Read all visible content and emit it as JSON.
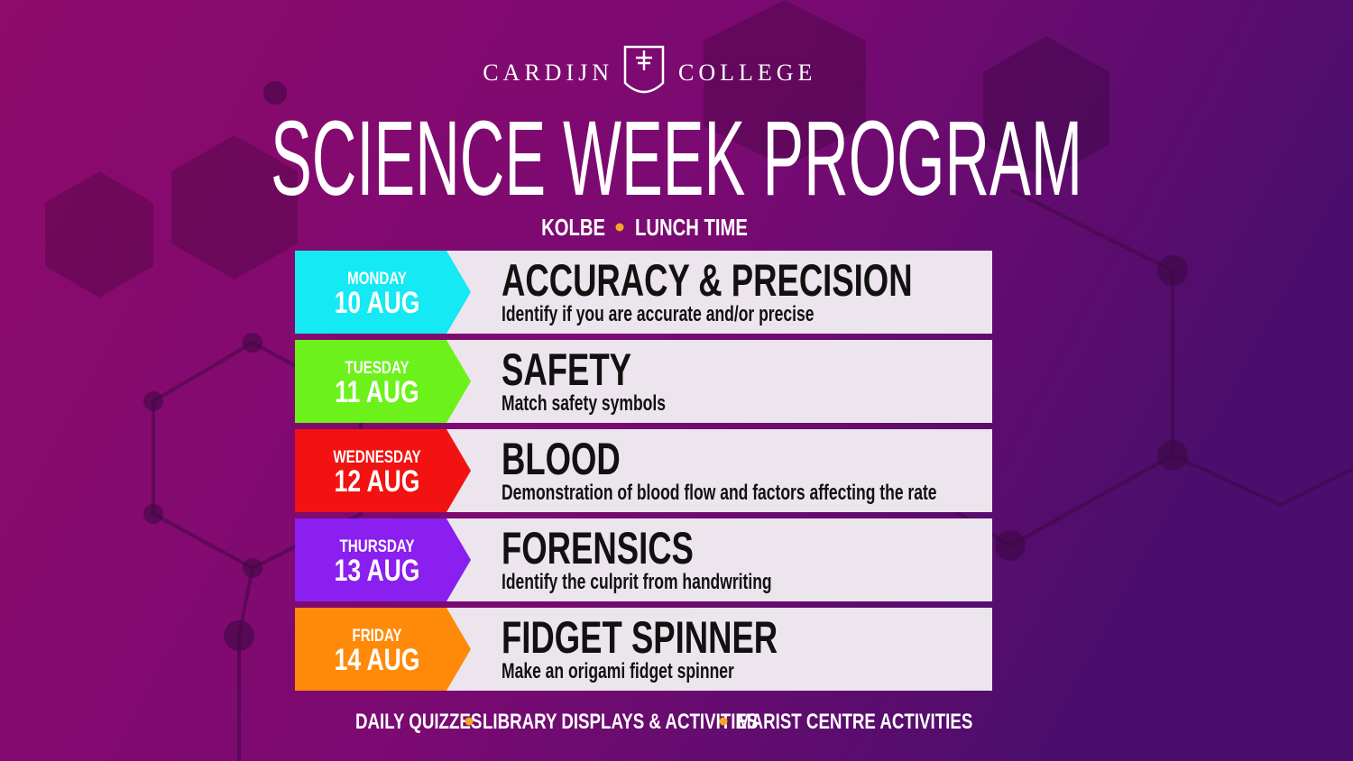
{
  "header": {
    "school_left": "CARDIJN",
    "school_right": "COLLEGE",
    "title": "SCIENCE WEEK PROGRAM",
    "location": "KOLBE",
    "time": "LUNCH TIME"
  },
  "schedule": [
    {
      "day": "MONDAY",
      "date": "10 AUG",
      "color": "#14e9f4",
      "title": "ACCURACY & PRECISION",
      "description": "Identify if you are accurate and/or precise"
    },
    {
      "day": "TUESDAY",
      "date": "11 AUG",
      "color": "#6cf21a",
      "title": "SAFETY",
      "description": "Match safety symbols"
    },
    {
      "day": "WEDNESDAY",
      "date": "12 AUG",
      "color": "#f21212",
      "title": "BLOOD",
      "description": "Demonstration of blood flow and factors affecting the rate"
    },
    {
      "day": "THURSDAY",
      "date": "13 AUG",
      "color": "#8a1ff0",
      "title": "FORENSICS",
      "description": "Identify the culprit from handwriting"
    },
    {
      "day": "FRIDAY",
      "date": "14 AUG",
      "color": "#ff8a0a",
      "title": "FIDGET SPINNER",
      "description": "Make an origami fidget spinner"
    }
  ],
  "footer": [
    "DAILY QUIZZES",
    "LIBRARY DISPLAYS & ACTIVITIES",
    "MARIST CENTRE ACTIVITIES"
  ]
}
